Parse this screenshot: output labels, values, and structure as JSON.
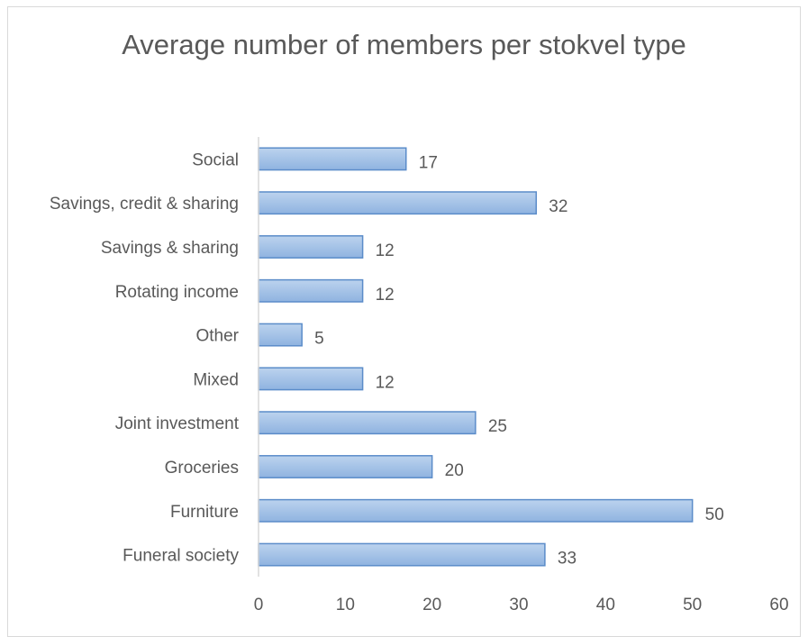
{
  "chart_data": {
    "type": "bar",
    "orientation": "horizontal",
    "title": "Average number of members per stokvel type",
    "categories": [
      "Funeral society",
      "Furniture",
      "Groceries",
      "Joint investment",
      "Mixed",
      "Other",
      "Rotating income",
      "Savings & sharing",
      "Savings, credit & sharing",
      "Social"
    ],
    "values": [
      33,
      50,
      20,
      25,
      12,
      5,
      12,
      12,
      32,
      17
    ],
    "data_labels": [
      "33",
      "50",
      "20",
      "25",
      "12",
      "5",
      "12",
      "12",
      "32",
      "17"
    ],
    "xlim": [
      0,
      60
    ],
    "x_ticks": [
      0,
      10,
      20,
      30,
      40,
      50,
      60
    ],
    "x_tick_labels": [
      "0",
      "10",
      "20",
      "30",
      "40",
      "50",
      "60"
    ],
    "grid": false,
    "legend": "none",
    "bar_fill_top": "#bcd3ee",
    "bar_fill_bottom": "#8fb3e0",
    "bar_border": "#5b8cc9",
    "text_color": "#595959",
    "axis_color": "#d9d9d9"
  }
}
